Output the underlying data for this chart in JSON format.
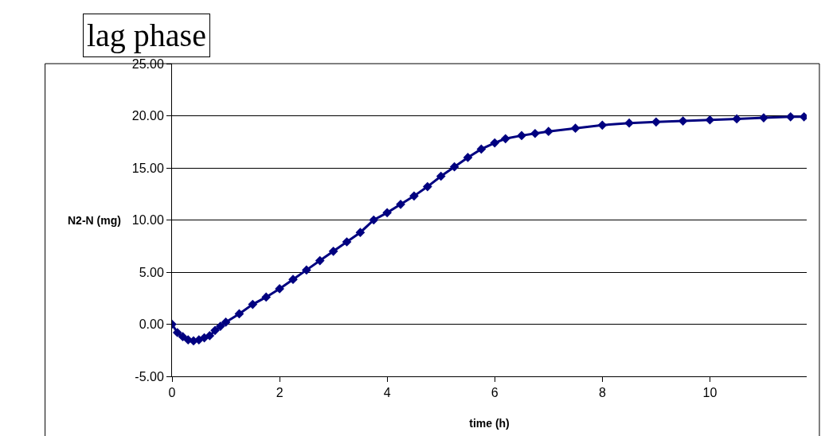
{
  "chart_data": {
    "type": "line",
    "xlabel": "time (h)",
    "ylabel": "N2-N (mg)",
    "annotations": [
      "lag phase"
    ],
    "x": [
      0,
      0.1,
      0.2,
      0.3,
      0.4,
      0.5,
      0.6,
      0.7,
      0.8,
      0.9,
      1.0,
      1.25,
      1.5,
      1.75,
      2.0,
      2.25,
      2.5,
      2.75,
      3.0,
      3.25,
      3.5,
      3.75,
      4.0,
      4.25,
      4.5,
      4.75,
      5.0,
      5.25,
      5.5,
      5.75,
      6.0,
      6.2,
      6.5,
      6.75,
      7.0,
      7.5,
      8.0,
      8.5,
      9.0,
      9.5,
      10.0,
      10.5,
      11.0,
      11.5,
      11.75
    ],
    "series": [
      {
        "color": "#000080",
        "values": [
          0,
          -0.8,
          -1.2,
          -1.5,
          -1.6,
          -1.5,
          -1.3,
          -1.1,
          -0.6,
          -0.2,
          0.2,
          1.0,
          1.9,
          2.6,
          3.4,
          4.3,
          5.2,
          6.1,
          7.0,
          7.9,
          8.8,
          10.0,
          10.7,
          11.5,
          12.3,
          13.2,
          14.2,
          15.1,
          16.0,
          16.8,
          17.4,
          17.8,
          18.1,
          18.3,
          18.5,
          18.8,
          19.1,
          19.3,
          19.4,
          19.5,
          19.6,
          19.7,
          19.8,
          19.9,
          19.9
        ]
      }
    ],
    "xlim": [
      0,
      11.8
    ],
    "xticks": [
      0,
      2,
      4,
      6,
      8,
      10
    ],
    "ylim": [
      -5,
      25
    ],
    "yticks": [
      {
        "value": -5,
        "label": "-5.00"
      },
      {
        "value": 0,
        "label": "0.00"
      },
      {
        "value": 5,
        "label": "5.00"
      },
      {
        "value": 10,
        "label": "10.00"
      },
      {
        "value": 15,
        "label": "15.00"
      },
      {
        "value": 20,
        "label": "20.00"
      },
      {
        "value": 25,
        "label": "25.00"
      }
    ],
    "grid": "y",
    "marker": "diamond",
    "line_style": "solid"
  }
}
